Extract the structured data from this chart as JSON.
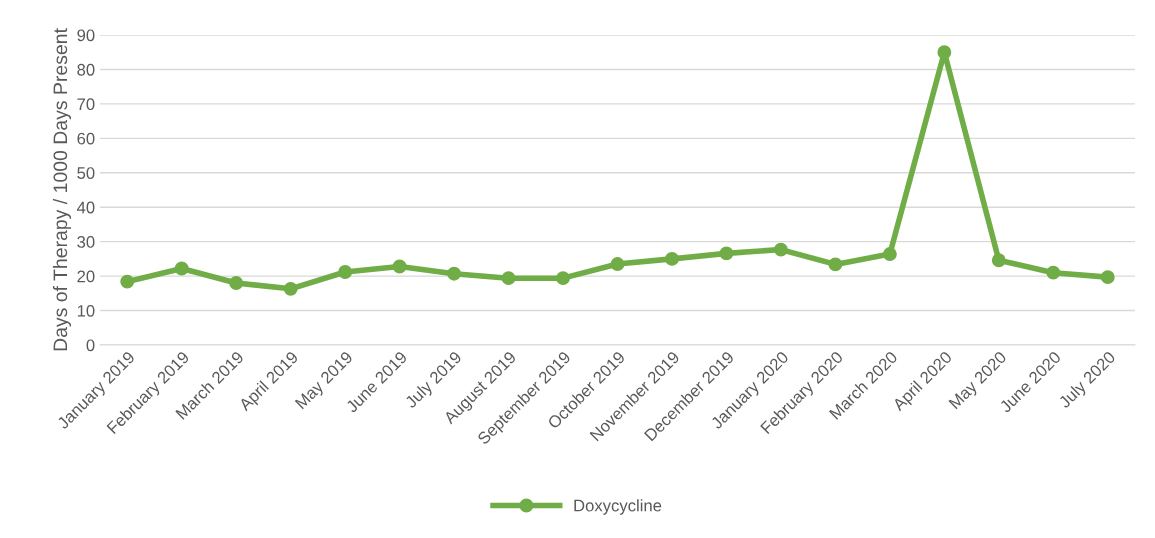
{
  "chart_data": {
    "type": "line",
    "ylabel": "Days of Therapy / 1000 Days Present",
    "categories": [
      "January 2019",
      "February 2019",
      "March 2019",
      "April 2019",
      "May 2019",
      "June 2019",
      "July 2019",
      "August 2019",
      "September 2019",
      "October 2019",
      "November 2019",
      "December 2019",
      "January 2020",
      "February 2020",
      "March 2020",
      "April 2020",
      "May 2020",
      "June 2020",
      "July 2020"
    ],
    "series": [
      {
        "name": "Doxycycline",
        "color": "#70ad47",
        "values": [
          18.4,
          22.2,
          18.0,
          16.3,
          21.2,
          22.8,
          20.7,
          19.4,
          19.4,
          23.5,
          25.0,
          26.6,
          27.7,
          23.4,
          26.4,
          85.0,
          24.6,
          21.0,
          19.7
        ]
      }
    ],
    "ylim": [
      0,
      90
    ],
    "yticks": [
      0,
      10,
      20,
      30,
      40,
      50,
      60,
      70,
      80,
      90
    ],
    "grid": "y",
    "legend": "bottom",
    "marker": "circle",
    "line_style": "solid"
  }
}
